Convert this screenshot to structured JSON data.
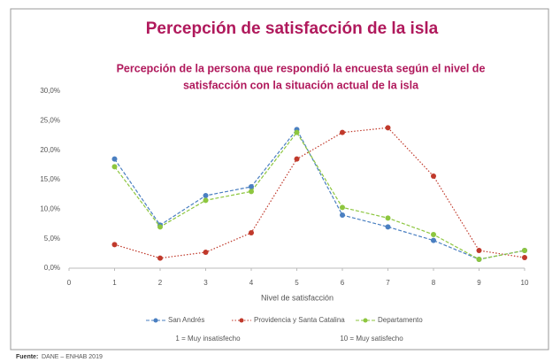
{
  "chart_data": {
    "type": "line",
    "title": "Percepción de satisfacción de la isla",
    "subtitle": [
      "Percepción de la persona que respondió la encuesta según el nivel de",
      "satisfacción con la situación actual de la isla"
    ],
    "x_label": "Nivel de satisfacción",
    "x": [
      1,
      2,
      3,
      4,
      5,
      6,
      7,
      8,
      9,
      10
    ],
    "xlim": [
      0,
      10
    ],
    "xticks": [
      0,
      1,
      2,
      3,
      4,
      5,
      6,
      7,
      8,
      9,
      10
    ],
    "ylim": [
      0,
      30
    ],
    "yticks": [
      {
        "value": 0,
        "label": "0,0%"
      },
      {
        "value": 5,
        "label": "5,0%"
      },
      {
        "value": 10,
        "label": "10,0%"
      },
      {
        "value": 15,
        "label": "15,0%"
      },
      {
        "value": 20,
        "label": "20,0%"
      },
      {
        "value": 25,
        "label": "25,0%"
      },
      {
        "value": 30,
        "label": "30,0%"
      }
    ],
    "grid": false,
    "legend": "bottom",
    "series": [
      {
        "name": "San Andrés",
        "color": "#4a7fc1",
        "line_style": "dashed",
        "values": [
          18.5,
          7.3,
          12.3,
          13.8,
          23.5,
          9.0,
          7.0,
          4.7,
          1.5,
          3.0
        ]
      },
      {
        "name": "Providencia y Santa Catalina",
        "color": "#c0392b",
        "line_style": "dotted",
        "values": [
          4.0,
          1.7,
          2.7,
          6.0,
          18.5,
          23.0,
          23.8,
          15.6,
          3.0,
          1.8
        ]
      },
      {
        "name": "Departamento",
        "color": "#8dc63f",
        "line_style": "dashed",
        "values": [
          17.2,
          7.0,
          11.5,
          13.0,
          23.0,
          10.3,
          8.5,
          5.7,
          1.5,
          3.0
        ]
      }
    ],
    "notes": [
      "1 = Muy insatisfecho",
      "10 = Muy satisfecho"
    ],
    "source_label": "Fuente:",
    "source": "DANE – ENHAB 2019"
  }
}
